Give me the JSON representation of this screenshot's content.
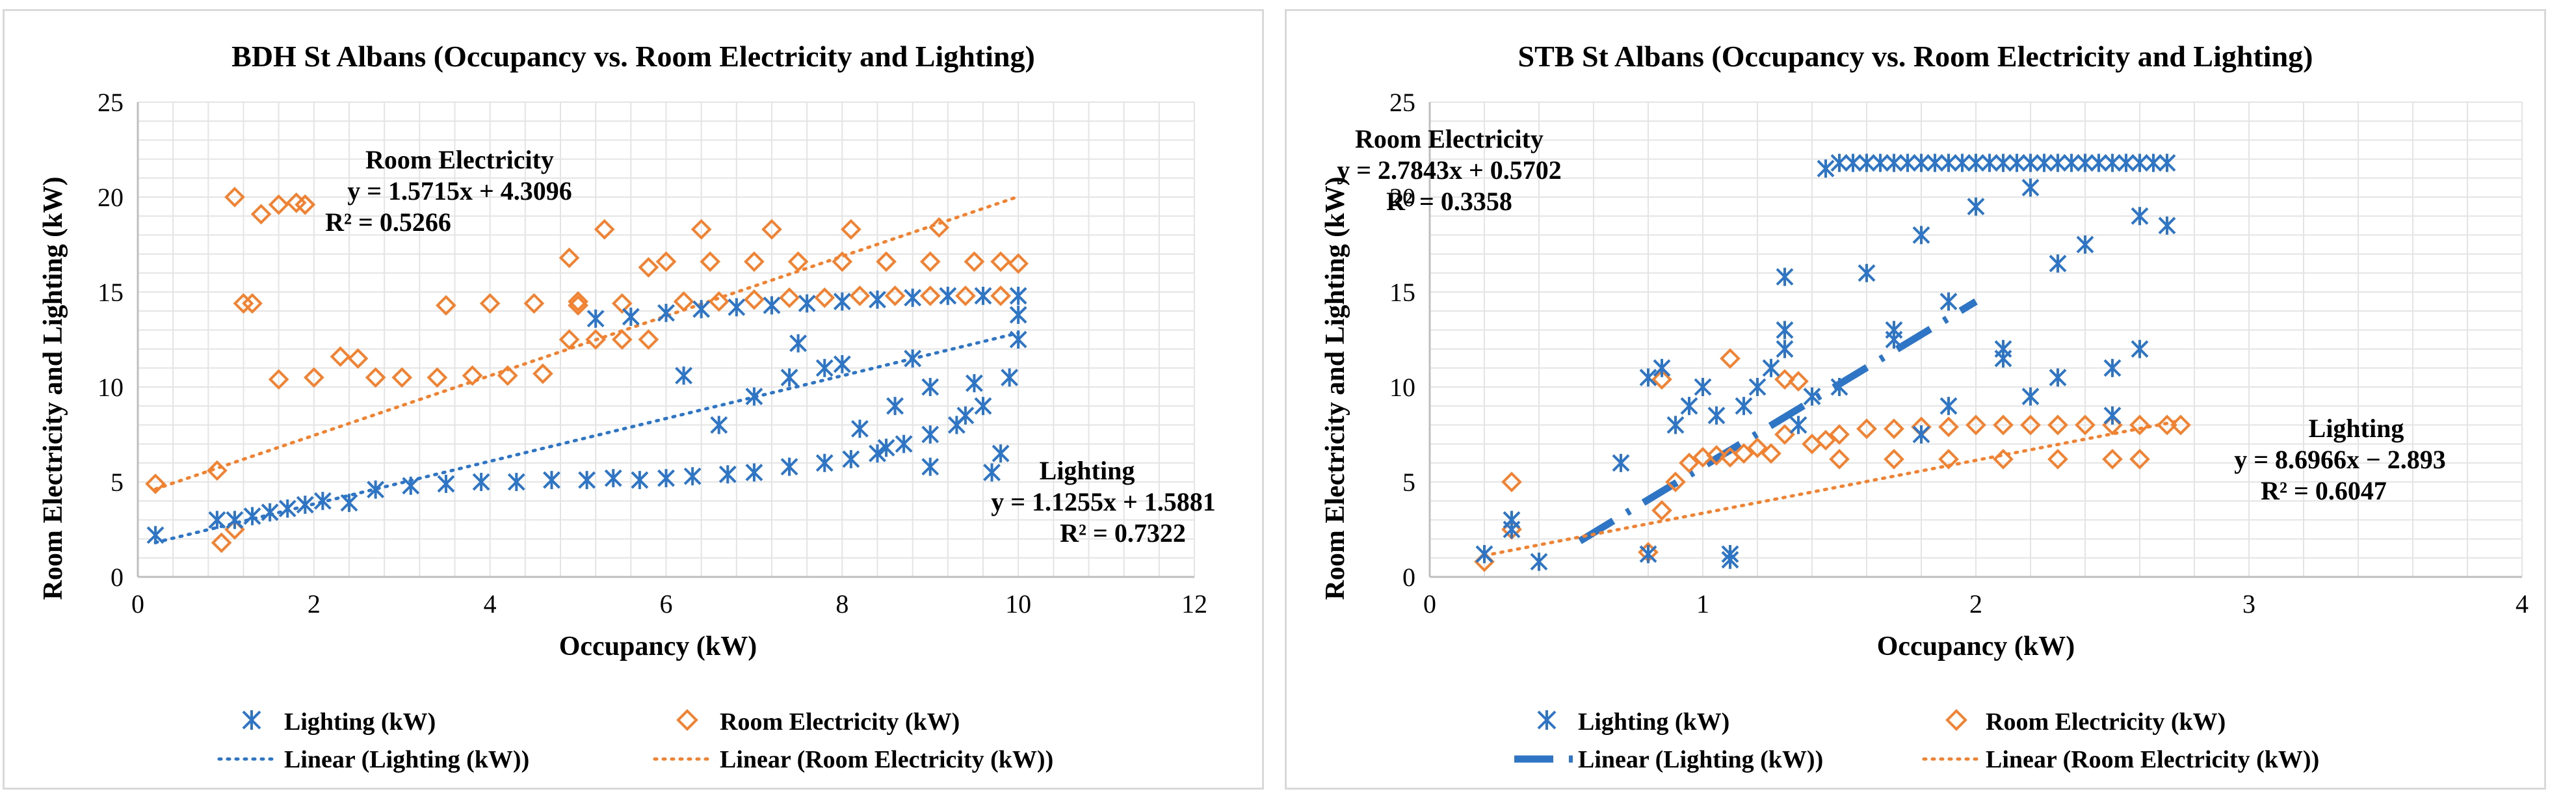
{
  "chart_data": [
    {
      "type": "scatter",
      "title": "BDH St Albans (Occupancy vs. Room Electricity and Lighting)",
      "xlabel": "Occupancy (kW)",
      "ylabel": "Room Electricity and Lighting (kW)",
      "xlim": [
        0,
        12
      ],
      "ylim": [
        0,
        25
      ],
      "xticks": [
        0,
        2,
        4,
        6,
        8,
        10,
        12
      ],
      "yticks": [
        0,
        5,
        10,
        15,
        20,
        25
      ],
      "grid": true,
      "colors": {
        "lighting": "#2e75c6",
        "room": "#f08232"
      },
      "series": [
        {
          "name": "Lighting (kW)",
          "marker": "star",
          "x": [
            0.2,
            0.9,
            1.1,
            1.3,
            1.5,
            1.7,
            1.9,
            2.1,
            2.4,
            2.7,
            3.1,
            3.5,
            3.9,
            4.3,
            4.7,
            5.1,
            5.4,
            5.7,
            6.0,
            6.3,
            6.7,
            7.0,
            7.4,
            7.8,
            8.1,
            8.4,
            8.7,
            9.0,
            9.3,
            9.6,
            9.9,
            10.0,
            5.2,
            5.6,
            6.0,
            6.4,
            6.8,
            7.2,
            7.6,
            8.0,
            8.4,
            8.8,
            9.2,
            9.6,
            10.0,
            6.6,
            7.0,
            7.4,
            7.8,
            8.2,
            8.6,
            9.0,
            9.4,
            9.8,
            8.0,
            8.5,
            9.0,
            9.5,
            10.0,
            6.2,
            7.5,
            8.8,
            9.7
          ],
          "y": [
            2.2,
            3.0,
            3.0,
            3.2,
            3.4,
            3.6,
            3.8,
            4.0,
            3.9,
            4.6,
            4.8,
            4.9,
            5.0,
            5.0,
            5.1,
            5.1,
            5.2,
            5.1,
            5.2,
            5.3,
            5.4,
            5.5,
            5.8,
            6.0,
            6.2,
            6.5,
            7.0,
            7.5,
            8.0,
            9.0,
            10.5,
            12.5,
            13.6,
            13.7,
            13.9,
            14.1,
            14.2,
            14.3,
            14.4,
            14.5,
            14.6,
            14.7,
            14.8,
            14.8,
            14.8,
            8.0,
            9.5,
            10.5,
            11.0,
            7.8,
            9.0,
            10.0,
            8.5,
            6.5,
            11.2,
            6.8,
            5.8,
            10.2,
            13.8,
            10.6,
            12.3,
            11.5,
            5.5
          ]
        },
        {
          "name": "Room Electricity (kW)",
          "marker": "diamond",
          "x": [
            0.2,
            0.9,
            0.95,
            1.1,
            1.2,
            1.4,
            1.6,
            1.8,
            1.9,
            2.0,
            2.3,
            2.5,
            2.7,
            3.0,
            3.4,
            3.8,
            4.2,
            4.6,
            4.9,
            5.2,
            5.5,
            5.8,
            6.2,
            6.6,
            7.0,
            7.4,
            7.8,
            8.2,
            8.6,
            9.0,
            9.4,
            9.8,
            10.0,
            5.0,
            5.5,
            6.0,
            6.5,
            7.0,
            7.5,
            8.0,
            8.5,
            9.0,
            9.5,
            3.5,
            4.0,
            4.5,
            5.0,
            1.1,
            1.3,
            1.6,
            1.9,
            6.4,
            7.2,
            8.1,
            9.1,
            9.8,
            4.9,
            5.3,
            5.8
          ],
          "y": [
            4.9,
            5.6,
            1.8,
            20.0,
            14.4,
            19.1,
            10.4,
            19.7,
            19.6,
            10.5,
            11.6,
            11.5,
            10.5,
            10.5,
            10.5,
            10.6,
            10.6,
            10.7,
            12.5,
            12.5,
            12.5,
            12.5,
            14.5,
            14.5,
            14.6,
            14.7,
            14.7,
            14.8,
            14.8,
            14.8,
            14.8,
            14.8,
            16.5,
            14.3,
            14.4,
            16.6,
            16.6,
            16.6,
            16.6,
            16.6,
            16.6,
            16.6,
            16.6,
            14.3,
            14.4,
            14.4,
            14.5,
            2.5,
            14.4,
            19.6,
            19.6,
            18.3,
            18.3,
            18.3,
            18.4,
            16.6,
            16.8,
            18.3,
            16.3
          ]
        }
      ],
      "trendlines": [
        {
          "name": "Linear (Lighting (kW))",
          "slope": 1.1255,
          "intercept": 1.5881,
          "x_range": [
            0.2,
            10.0
          ],
          "style": "dotted"
        },
        {
          "name": "Linear (Room Electricity (kW))",
          "slope": 1.5715,
          "intercept": 4.3096,
          "x_range": [
            0.2,
            10.0
          ],
          "style": "dotted"
        }
      ],
      "annotations": {
        "room_label": "Room Electricity",
        "room_eq": "y = 1.5715x + 4.3096",
        "room_r2": "R² = 0.5266",
        "lighting_label": "Lighting",
        "lighting_eq": "y = 1.1255x + 1.5881",
        "lighting_r2": "R² = 0.7322"
      },
      "legend": [
        {
          "label": "Lighting (kW)"
        },
        {
          "label": "Room Electricity (kW)"
        },
        {
          "label": "Linear (Lighting (kW))"
        },
        {
          "label": "Linear (Room Electricity (kW))"
        }
      ],
      "legend_position": "bottom"
    },
    {
      "type": "scatter",
      "title": "STB St Albans (Occupancy vs. Room Electricity and Lighting)",
      "xlabel": "Occupancy (kW)",
      "ylabel": "Room Electricity and Lighting (kW)",
      "xlim": [
        0,
        4
      ],
      "ylim": [
        0,
        25
      ],
      "xticks": [
        0,
        1,
        2,
        3,
        4
      ],
      "yticks": [
        0,
        5,
        10,
        15,
        20,
        25
      ],
      "grid": true,
      "colors": {
        "lighting": "#2e75c6",
        "room": "#f08232"
      },
      "series": [
        {
          "name": "Lighting (kW)",
          "marker": "star",
          "x": [
            0.2,
            0.3,
            0.3,
            0.4,
            0.7,
            0.8,
            0.8,
            0.85,
            0.9,
            0.95,
            1.0,
            1.05,
            1.1,
            1.1,
            1.15,
            1.2,
            1.25,
            1.3,
            1.3,
            1.35,
            1.4,
            1.45,
            1.5,
            1.55,
            1.6,
            1.65,
            1.7,
            1.75,
            1.8,
            1.85,
            1.9,
            1.95,
            2.0,
            2.05,
            2.1,
            2.15,
            2.2,
            2.25,
            2.3,
            2.35,
            2.4,
            2.45,
            2.5,
            2.55,
            2.6,
            2.65,
            2.7,
            1.6,
            1.8,
            2.0,
            2.2,
            2.4,
            2.6,
            1.7,
            1.9,
            2.1,
            2.3,
            2.5,
            1.3,
            1.5,
            1.7,
            1.9,
            2.1,
            2.3,
            2.5,
            2.7,
            1.8,
            2.2,
            2.6
          ],
          "y": [
            1.2,
            3.0,
            2.5,
            0.8,
            6.0,
            10.5,
            1.2,
            11.0,
            8.0,
            9.0,
            10.0,
            8.5,
            1.2,
            0.9,
            9.0,
            10.0,
            11.0,
            12.0,
            13.0,
            8.0,
            9.5,
            21.5,
            21.8,
            21.8,
            21.8,
            21.8,
            21.8,
            21.8,
            21.8,
            21.8,
            21.8,
            21.8,
            21.8,
            21.8,
            21.8,
            21.8,
            21.8,
            21.8,
            21.8,
            21.8,
            21.8,
            21.8,
            21.8,
            21.8,
            21.8,
            21.8,
            21.8,
            16.0,
            18.0,
            19.5,
            20.5,
            17.5,
            19.0,
            13.0,
            14.5,
            12.0,
            16.5,
            11.0,
            15.8,
            10.0,
            12.5,
            9.0,
            11.5,
            10.5,
            8.5,
            18.5,
            7.5,
            9.5,
            12.0
          ]
        },
        {
          "name": "Room Electricity (kW)",
          "marker": "diamond",
          "x": [
            0.2,
            0.3,
            0.3,
            0.8,
            0.85,
            0.9,
            0.95,
            1.0,
            1.05,
            1.1,
            1.15,
            1.2,
            1.25,
            1.3,
            1.35,
            1.4,
            1.45,
            1.5,
            1.6,
            1.7,
            1.8,
            1.9,
            2.0,
            2.1,
            2.2,
            2.3,
            2.4,
            2.5,
            2.6,
            2.7,
            2.75,
            1.5,
            1.7,
            1.9,
            2.1,
            2.3,
            2.5,
            2.6,
            1.1,
            1.3,
            0.85
          ],
          "y": [
            0.8,
            5.0,
            2.5,
            1.3,
            3.5,
            5.0,
            6.0,
            6.3,
            6.4,
            6.3,
            6.5,
            6.8,
            6.5,
            7.5,
            10.3,
            7.0,
            7.2,
            7.5,
            7.8,
            7.8,
            7.9,
            7.9,
            8.0,
            8.0,
            8.0,
            8.0,
            8.0,
            8.0,
            8.0,
            8.0,
            8.0,
            6.2,
            6.2,
            6.2,
            6.2,
            6.2,
            6.2,
            6.2,
            11.5,
            10.4,
            10.4
          ]
        }
      ],
      "trendlines": [
        {
          "name": "Linear (Lighting (kW))",
          "slope": 8.6966,
          "intercept": -2.893,
          "x_range": [
            0.55,
            2.0
          ],
          "style": "dash-dot"
        },
        {
          "name": "Linear (Room Electricity (kW))",
          "slope": 2.7843,
          "intercept": 0.5702,
          "x_range": [
            0.2,
            2.75
          ],
          "style": "dotted"
        }
      ],
      "annotations": {
        "room_label": "Room Electricity",
        "room_eq": "y = 2.7843x + 0.5702",
        "room_r2": "R² = 0.3358",
        "lighting_label": "Lighting",
        "lighting_eq": "y = 8.6966x − 2.893",
        "lighting_r2": "R² = 0.6047"
      },
      "legend": [
        {
          "label": "Lighting (kW)"
        },
        {
          "label": "Room Electricity (kW)"
        },
        {
          "label": "Linear (Lighting (kW))"
        },
        {
          "label": "Linear (Room Electricity (kW))"
        }
      ],
      "legend_position": "bottom"
    }
  ]
}
